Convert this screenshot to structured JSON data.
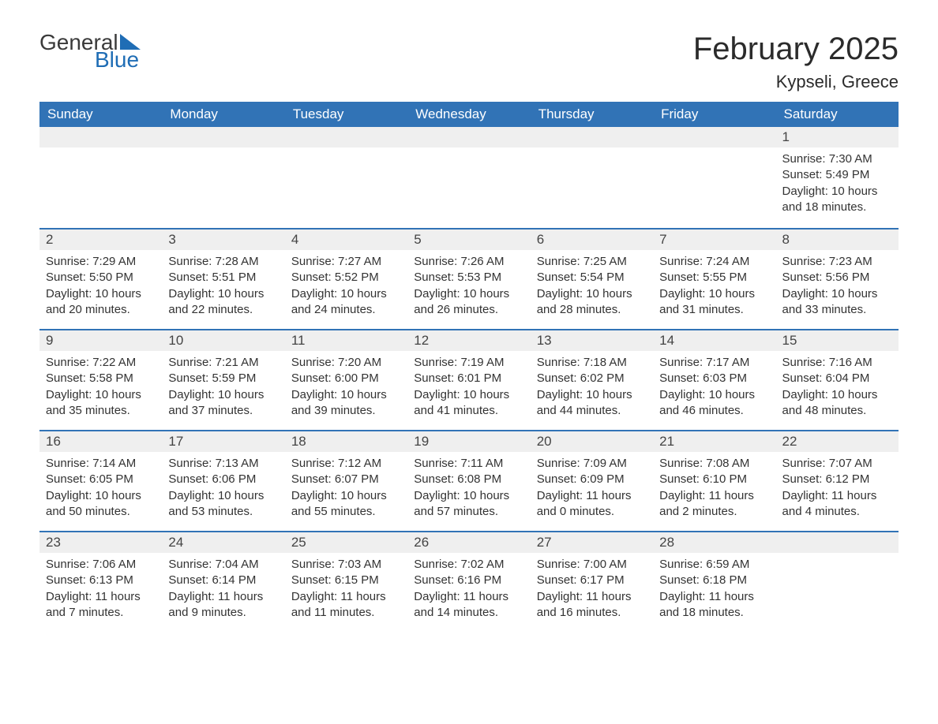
{
  "logo": {
    "word1": "General",
    "word2": "Blue",
    "color_general": "#3a3a3a",
    "color_blue": "#1f6db5"
  },
  "title": "February 2025",
  "location": "Kypseli, Greece",
  "colors": {
    "header_bg": "#3173b6",
    "header_text": "#ffffff",
    "daynum_bg": "#efefef",
    "row_border": "#3173b6",
    "body_text": "#333333",
    "background": "#ffffff"
  },
  "typography": {
    "title_fontsize": 40,
    "location_fontsize": 22,
    "dayheader_fontsize": 17,
    "body_fontsize": 15
  },
  "day_headers": [
    "Sunday",
    "Monday",
    "Tuesday",
    "Wednesday",
    "Thursday",
    "Friday",
    "Saturday"
  ],
  "labels": {
    "sunrise": "Sunrise:",
    "sunset": "Sunset:",
    "daylight": "Daylight:"
  },
  "weeks": [
    [
      null,
      null,
      null,
      null,
      null,
      null,
      {
        "n": "1",
        "sunrise": "7:30 AM",
        "sunset": "5:49 PM",
        "daylight": "10 hours and 18 minutes."
      }
    ],
    [
      {
        "n": "2",
        "sunrise": "7:29 AM",
        "sunset": "5:50 PM",
        "daylight": "10 hours and 20 minutes."
      },
      {
        "n": "3",
        "sunrise": "7:28 AM",
        "sunset": "5:51 PM",
        "daylight": "10 hours and 22 minutes."
      },
      {
        "n": "4",
        "sunrise": "7:27 AM",
        "sunset": "5:52 PM",
        "daylight": "10 hours and 24 minutes."
      },
      {
        "n": "5",
        "sunrise": "7:26 AM",
        "sunset": "5:53 PM",
        "daylight": "10 hours and 26 minutes."
      },
      {
        "n": "6",
        "sunrise": "7:25 AM",
        "sunset": "5:54 PM",
        "daylight": "10 hours and 28 minutes."
      },
      {
        "n": "7",
        "sunrise": "7:24 AM",
        "sunset": "5:55 PM",
        "daylight": "10 hours and 31 minutes."
      },
      {
        "n": "8",
        "sunrise": "7:23 AM",
        "sunset": "5:56 PM",
        "daylight": "10 hours and 33 minutes."
      }
    ],
    [
      {
        "n": "9",
        "sunrise": "7:22 AM",
        "sunset": "5:58 PM",
        "daylight": "10 hours and 35 minutes."
      },
      {
        "n": "10",
        "sunrise": "7:21 AM",
        "sunset": "5:59 PM",
        "daylight": "10 hours and 37 minutes."
      },
      {
        "n": "11",
        "sunrise": "7:20 AM",
        "sunset": "6:00 PM",
        "daylight": "10 hours and 39 minutes."
      },
      {
        "n": "12",
        "sunrise": "7:19 AM",
        "sunset": "6:01 PM",
        "daylight": "10 hours and 41 minutes."
      },
      {
        "n": "13",
        "sunrise": "7:18 AM",
        "sunset": "6:02 PM",
        "daylight": "10 hours and 44 minutes."
      },
      {
        "n": "14",
        "sunrise": "7:17 AM",
        "sunset": "6:03 PM",
        "daylight": "10 hours and 46 minutes."
      },
      {
        "n": "15",
        "sunrise": "7:16 AM",
        "sunset": "6:04 PM",
        "daylight": "10 hours and 48 minutes."
      }
    ],
    [
      {
        "n": "16",
        "sunrise": "7:14 AM",
        "sunset": "6:05 PM",
        "daylight": "10 hours and 50 minutes."
      },
      {
        "n": "17",
        "sunrise": "7:13 AM",
        "sunset": "6:06 PM",
        "daylight": "10 hours and 53 minutes."
      },
      {
        "n": "18",
        "sunrise": "7:12 AM",
        "sunset": "6:07 PM",
        "daylight": "10 hours and 55 minutes."
      },
      {
        "n": "19",
        "sunrise": "7:11 AM",
        "sunset": "6:08 PM",
        "daylight": "10 hours and 57 minutes."
      },
      {
        "n": "20",
        "sunrise": "7:09 AM",
        "sunset": "6:09 PM",
        "daylight": "11 hours and 0 minutes."
      },
      {
        "n": "21",
        "sunrise": "7:08 AM",
        "sunset": "6:10 PM",
        "daylight": "11 hours and 2 minutes."
      },
      {
        "n": "22",
        "sunrise": "7:07 AM",
        "sunset": "6:12 PM",
        "daylight": "11 hours and 4 minutes."
      }
    ],
    [
      {
        "n": "23",
        "sunrise": "7:06 AM",
        "sunset": "6:13 PM",
        "daylight": "11 hours and 7 minutes."
      },
      {
        "n": "24",
        "sunrise": "7:04 AM",
        "sunset": "6:14 PM",
        "daylight": "11 hours and 9 minutes."
      },
      {
        "n": "25",
        "sunrise": "7:03 AM",
        "sunset": "6:15 PM",
        "daylight": "11 hours and 11 minutes."
      },
      {
        "n": "26",
        "sunrise": "7:02 AM",
        "sunset": "6:16 PM",
        "daylight": "11 hours and 14 minutes."
      },
      {
        "n": "27",
        "sunrise": "7:00 AM",
        "sunset": "6:17 PM",
        "daylight": "11 hours and 16 minutes."
      },
      {
        "n": "28",
        "sunrise": "6:59 AM",
        "sunset": "6:18 PM",
        "daylight": "11 hours and 18 minutes."
      },
      null
    ]
  ]
}
